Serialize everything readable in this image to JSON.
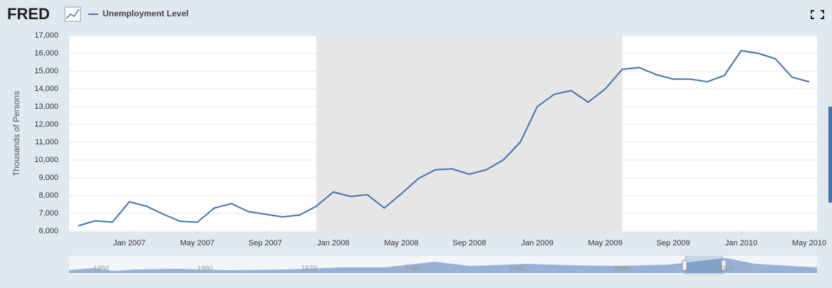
{
  "chart_data": {
    "type": "line",
    "brand": "FRED",
    "y_label": "Thousands of Persons",
    "x": [
      "2006-10",
      "2006-11",
      "2006-12",
      "2007-01",
      "2007-02",
      "2007-03",
      "2007-04",
      "2007-05",
      "2007-06",
      "2007-07",
      "2007-08",
      "2007-09",
      "2007-10",
      "2007-11",
      "2007-12",
      "2008-01",
      "2008-02",
      "2008-03",
      "2008-04",
      "2008-05",
      "2008-06",
      "2008-07",
      "2008-08",
      "2008-09",
      "2008-10",
      "2008-11",
      "2008-12",
      "2009-01",
      "2009-02",
      "2009-03",
      "2009-04",
      "2009-05",
      "2009-06",
      "2009-07",
      "2009-08",
      "2009-09",
      "2009-10",
      "2009-11",
      "2009-12",
      "2010-01",
      "2010-02",
      "2010-03",
      "2010-04",
      "2010-05"
    ],
    "series": [
      {
        "name": "Unemployment Level",
        "color": "#4572a7",
        "values": [
          6300,
          6580,
          6500,
          7650,
          7400,
          6950,
          6550,
          6500,
          7300,
          7550,
          7100,
          6950,
          6800,
          6900,
          7400,
          8200,
          7950,
          8050,
          7300,
          8100,
          8950,
          9450,
          9500,
          9200,
          9450,
          10000,
          11000,
          13000,
          13700,
          13900,
          13250,
          14000,
          15100,
          15200,
          14800,
          14550,
          14550,
          14400,
          14750,
          16150,
          16000,
          15700,
          14650,
          14400
        ]
      }
    ],
    "xlim": [
      "2006-10",
      "2010-05"
    ],
    "xticks": [
      {
        "value": "2007-01",
        "label": "Jan 2007"
      },
      {
        "value": "2007-05",
        "label": "May 2007"
      },
      {
        "value": "2007-09",
        "label": "Sep 2007"
      },
      {
        "value": "2008-01",
        "label": "Jan 2008"
      },
      {
        "value": "2008-05",
        "label": "May 2008"
      },
      {
        "value": "2008-09",
        "label": "Sep 2008"
      },
      {
        "value": "2009-01",
        "label": "Jan 2009"
      },
      {
        "value": "2009-05",
        "label": "May 2009"
      },
      {
        "value": "2009-09",
        "label": "Sep 2009"
      },
      {
        "value": "2010-01",
        "label": "Jan 2010"
      },
      {
        "value": "2010-05",
        "label": "May 2010"
      }
    ],
    "ylim": [
      6000,
      17000
    ],
    "yticks": [
      {
        "value": 6000,
        "label": "6,000"
      },
      {
        "value": 7000,
        "label": "7,000"
      },
      {
        "value": 8000,
        "label": "8,000"
      },
      {
        "value": 9000,
        "label": "9,000"
      },
      {
        "value": 10000,
        "label": "10,000"
      },
      {
        "value": 11000,
        "label": "11,000"
      },
      {
        "value": 12000,
        "label": "12,000"
      },
      {
        "value": 13000,
        "label": "13,000"
      },
      {
        "value": 14000,
        "label": "14,000"
      },
      {
        "value": 15000,
        "label": "15,000"
      },
      {
        "value": 16000,
        "label": "16,000"
      },
      {
        "value": 17000,
        "label": "17,000"
      }
    ],
    "grid": true,
    "recession": {
      "start": "2007-12",
      "end": "2009-06",
      "color": "#e6e6e6"
    },
    "navigator_labels": [
      "1950",
      "1960",
      "1970",
      "1980",
      "1990",
      "2000",
      "2010"
    ]
  }
}
